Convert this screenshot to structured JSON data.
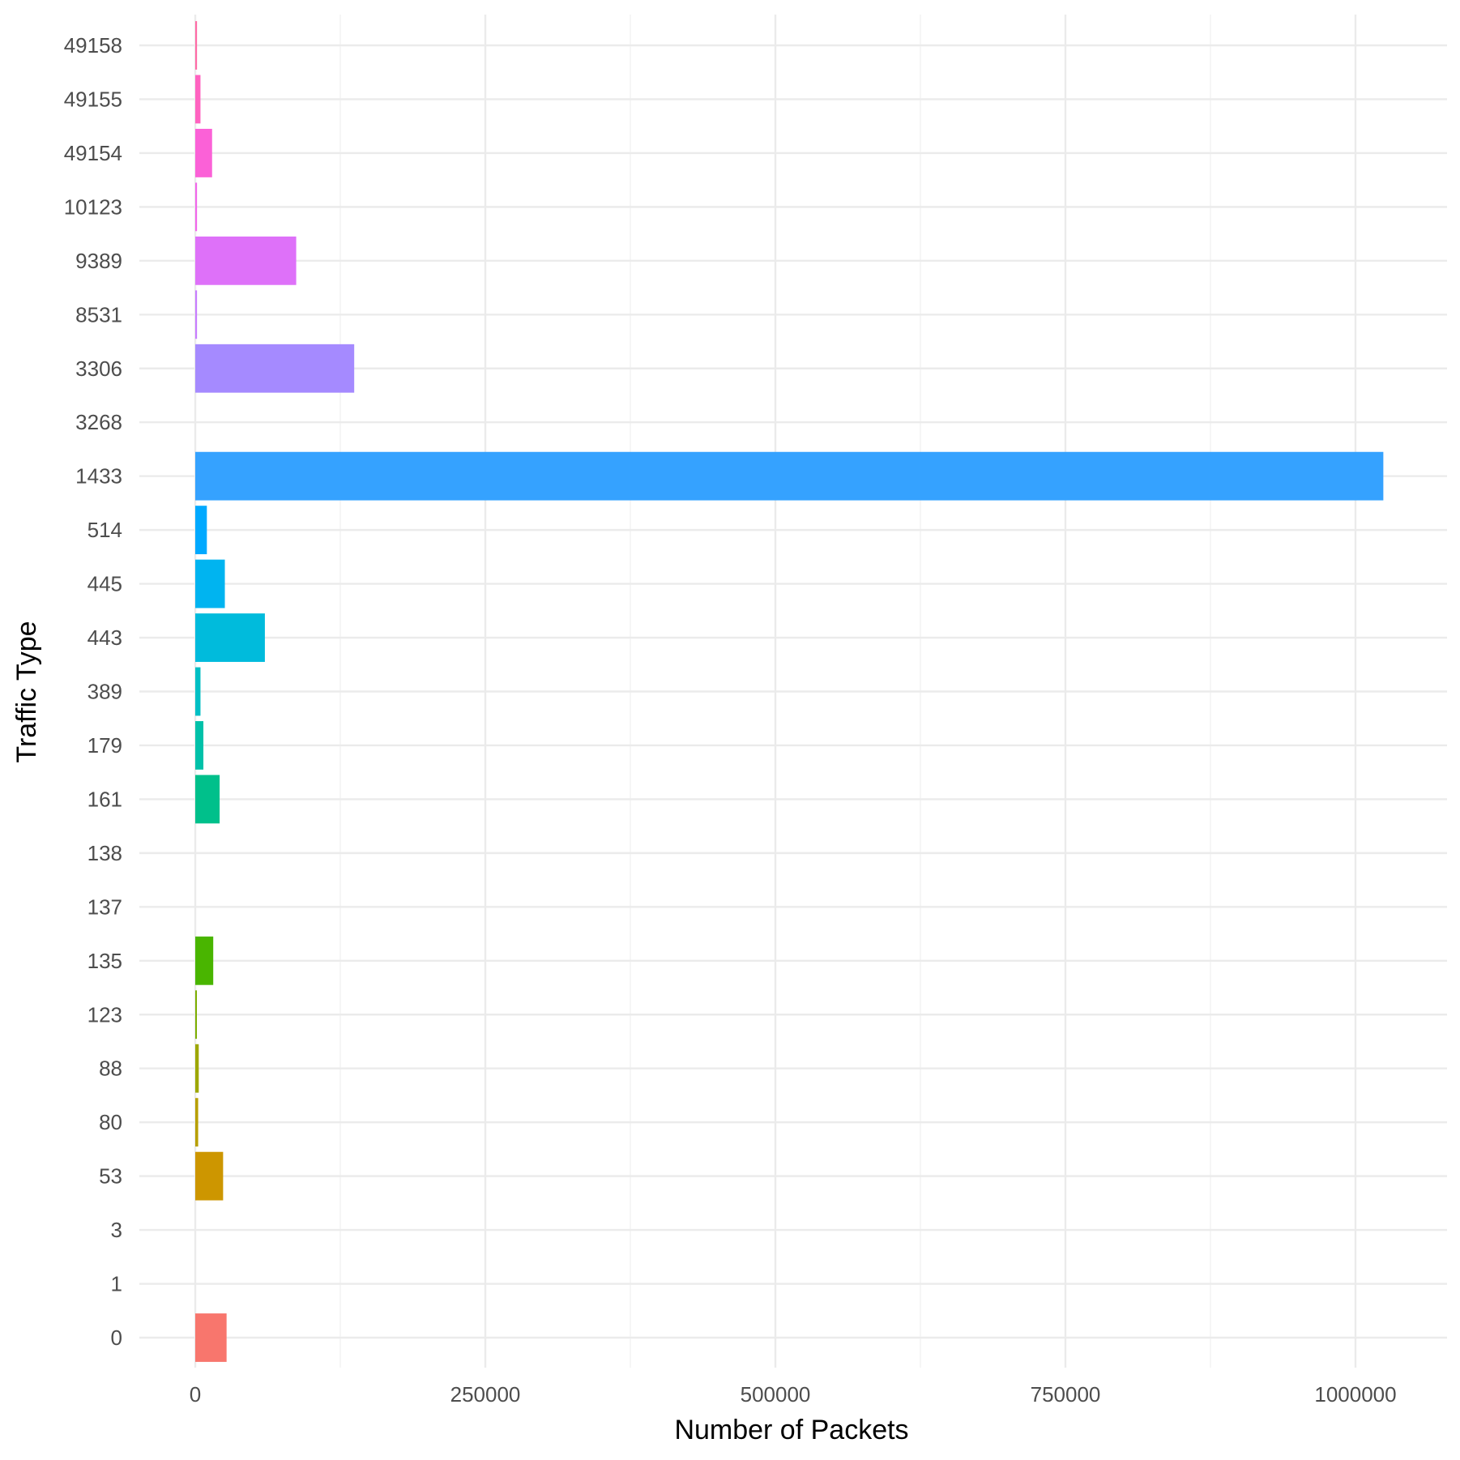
{
  "chart_data": {
    "type": "bar",
    "orientation": "horizontal",
    "xlabel": "Number of Packets",
    "ylabel": "Traffic Type",
    "xlim": [
      -50000,
      1075000
    ],
    "x_ticks": [
      0,
      250000,
      500000,
      750000,
      1000000
    ],
    "x_tick_labels": [
      "0",
      "250000",
      "500000",
      "750000",
      "1000000"
    ],
    "grid": true,
    "legend": "none",
    "categories": [
      "0",
      "1",
      "3",
      "53",
      "80",
      "88",
      "123",
      "135",
      "137",
      "138",
      "161",
      "179",
      "389",
      "443",
      "445",
      "514",
      "1433",
      "3268",
      "3306",
      "8531",
      "9389",
      "10123",
      "49154",
      "49155",
      "49158"
    ],
    "values": [
      27000,
      0,
      0,
      24000,
      2500,
      3000,
      1200,
      15500,
      0,
      0,
      21000,
      7000,
      4500,
      60000,
      25500,
      10000,
      1024000,
      0,
      137000,
      1500,
      87000,
      1500,
      14500,
      4500,
      1500
    ],
    "colors": [
      "#F8766D",
      "#ED813E",
      "#DE8C00",
      "#CD9600",
      "#B79F00",
      "#9DA700",
      "#7CAE00",
      "#49B500",
      "#00BA38",
      "#00BE67",
      "#00C08B",
      "#00C1A9",
      "#00BFC4",
      "#00BBDC",
      "#00B4F0",
      "#00A9FF",
      "#35A2FF",
      "#7F96FF",
      "#A58AFF",
      "#C77CFF",
      "#DE71F9",
      "#F066EA",
      "#FB61D7",
      "#FF63C0",
      "#FF6AA5"
    ]
  }
}
